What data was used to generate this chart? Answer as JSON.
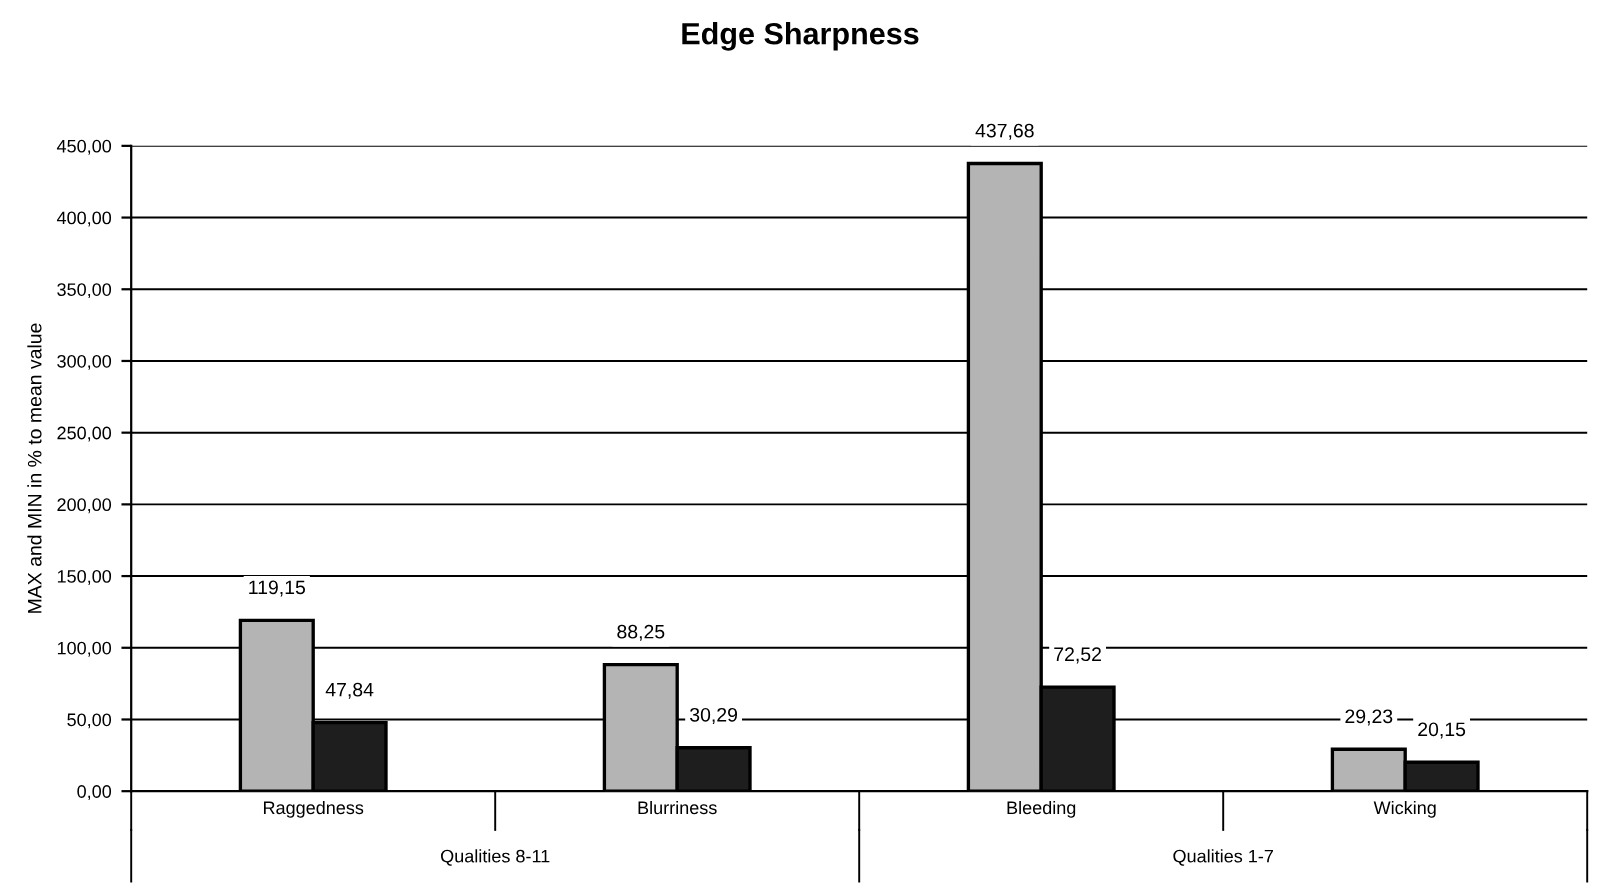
{
  "chart_data": {
    "type": "bar",
    "title": "Edge Sharpness",
    "ylabel": "MAX and MIN in % to mean value",
    "categories": [
      "Raggedness",
      "Blurriness",
      "Bleeding",
      "Wicking"
    ],
    "series": [
      {
        "color": "#b4b4b4",
        "values": [
          119.15,
          88.25,
          437.68,
          29.23
        ],
        "value_labels": [
          "119,15",
          "88,25",
          "437,68",
          "29,23"
        ]
      },
      {
        "color": "#1e1e1e",
        "values": [
          47.84,
          30.29,
          72.52,
          20.15
        ],
        "value_labels": [
          "47,84",
          "30,29",
          "72,52",
          "20,15"
        ]
      }
    ],
    "annotations": [
      "Qualities 8-11",
      "Qualities 1-7"
    ],
    "ylim": [
      0,
      450
    ],
    "yticks": [
      {
        "value": 0,
        "label": "0,00"
      },
      {
        "value": 50,
        "label": "50,00"
      },
      {
        "value": 100,
        "label": "100,00"
      },
      {
        "value": 150,
        "label": "150,00"
      },
      {
        "value": 200,
        "label": "200,00"
      },
      {
        "value": 250,
        "label": "250,00"
      },
      {
        "value": 300,
        "label": "300,00"
      },
      {
        "value": 350,
        "label": "350,00"
      },
      {
        "value": 400,
        "label": "400,00"
      },
      {
        "value": 450,
        "label": "450,00"
      }
    ],
    "grid": "y",
    "legend": false
  }
}
